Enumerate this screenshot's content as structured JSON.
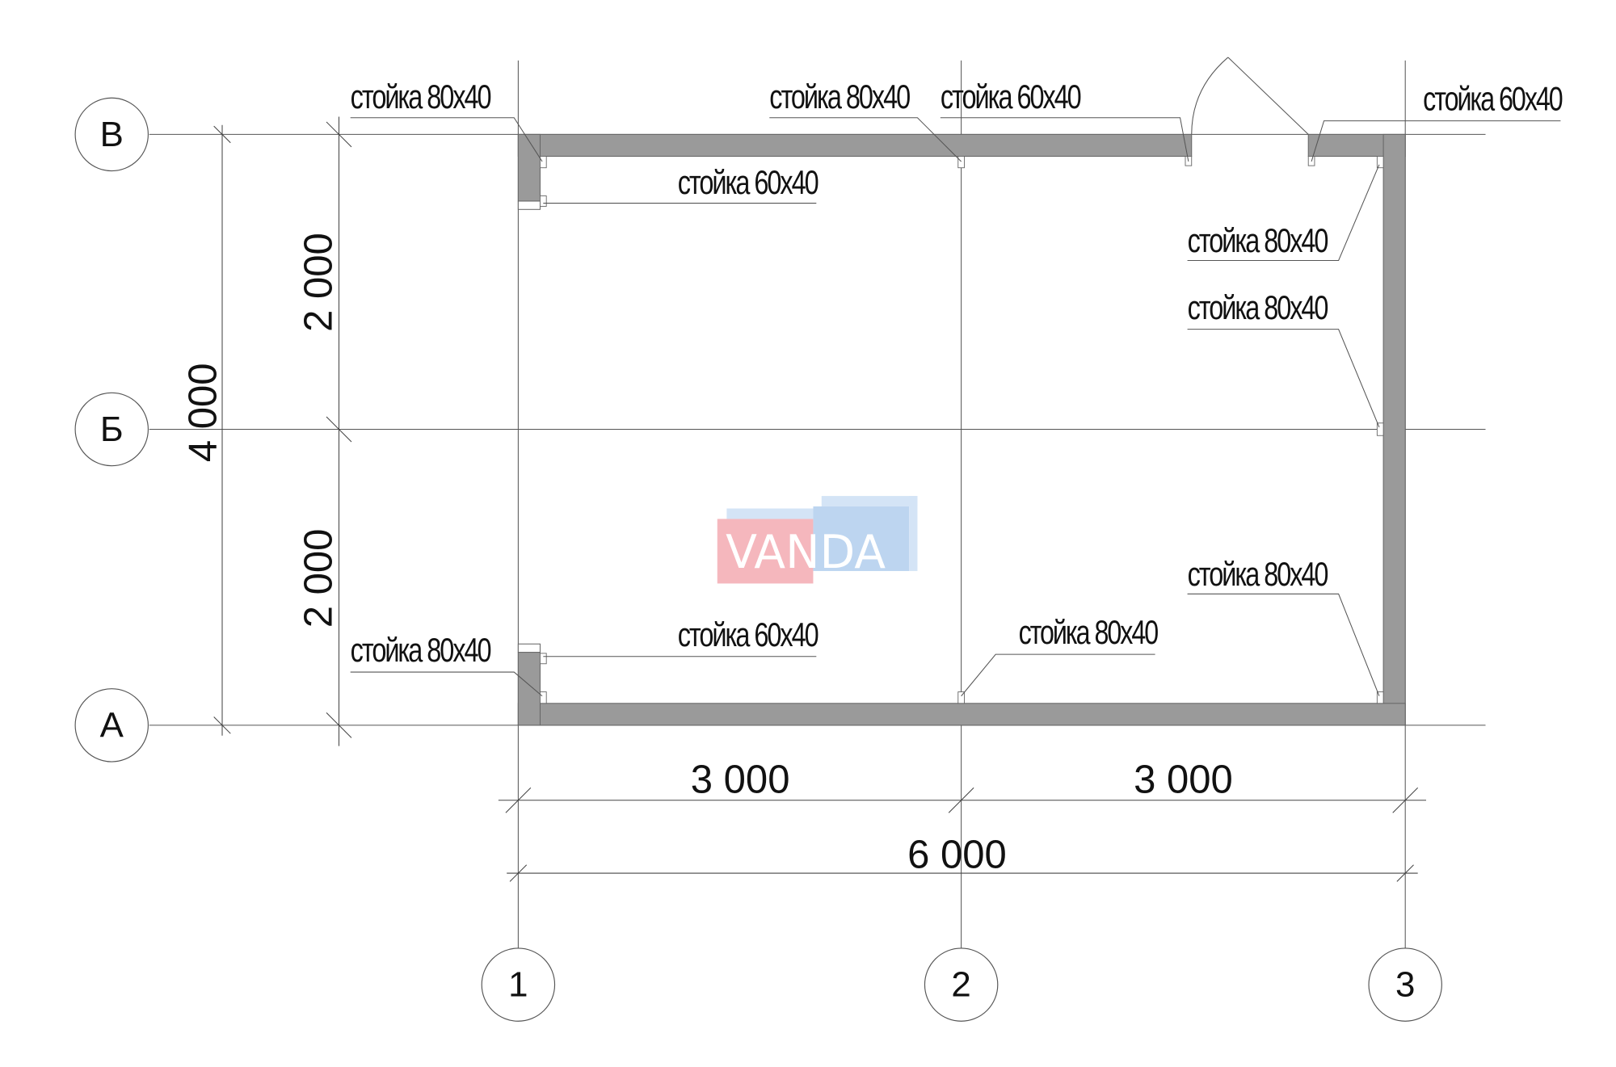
{
  "axes": {
    "rows": [
      "В",
      "Б",
      "А"
    ],
    "columns": [
      "1",
      "2",
      "3"
    ]
  },
  "dimensions": {
    "left_total": "4 000",
    "left_upper": "2 000",
    "left_lower": "2 000",
    "bottom_left": "3 000",
    "bottom_right": "3 000",
    "bottom_total": "6 000"
  },
  "labels": [
    "стойка 80х40",
    "стойка 80х40",
    "стойка 60х40",
    "стойка 60х40",
    "стойка 60х40",
    "стойка 80х40",
    "стойка 80х40",
    "стойка 80х40",
    "стойка 60х40",
    "стойка 80х40",
    "стойка 80х40"
  ],
  "watermark": "VANDA",
  "colors": {
    "wall": "#9a9a9a",
    "watermark_red": "#f2a0a8",
    "watermark_blue": "#a8c8ec"
  }
}
